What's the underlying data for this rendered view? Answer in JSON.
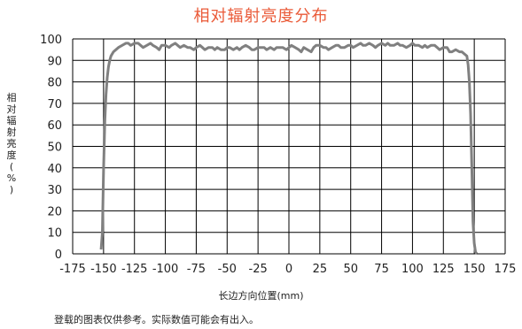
{
  "title": "相对辐射亮度分布",
  "xlabel": "长边方向位置(mm)",
  "ylabel_chars": [
    "相",
    "对",
    "辐",
    "射",
    "亮",
    "度",
    "(",
    "%",
    ")"
  ],
  "note": "登载的图表仅供参考。实际数值可能会有出入。",
  "colors": {
    "title": "#ea5a38",
    "line": "#808080",
    "grid": "#000000"
  },
  "chart_data": {
    "type": "line",
    "title": "相对辐射亮度分布",
    "xlabel": "长边方向位置(mm)",
    "ylabel": "相对辐射亮度(%)",
    "xlim": [
      -175,
      175
    ],
    "ylim": [
      0,
      100
    ],
    "xticks": [
      "-175",
      "-150",
      "-125",
      "-100",
      "-75",
      "-50",
      "-25",
      "0",
      "25",
      "50",
      "75",
      "100",
      "125",
      "150",
      "175"
    ],
    "yticks": [
      "0",
      "10",
      "20",
      "30",
      "40",
      "50",
      "60",
      "70",
      "80",
      "90",
      "100"
    ],
    "grid": true,
    "series": [
      {
        "x": [
          -152,
          -151,
          -150,
          -149,
          -148,
          -147,
          -146,
          -145,
          -144,
          -142,
          -140,
          -138,
          -135,
          -132,
          -130,
          -128,
          -125,
          -122,
          -120,
          -118,
          -115,
          -112,
          -110,
          -107,
          -105,
          -103,
          -100,
          -97,
          -95,
          -92,
          -90,
          -88,
          -85,
          -82,
          -80,
          -77,
          -75,
          -72,
          -70,
          -68,
          -65,
          -62,
          -60,
          -58,
          -55,
          -52,
          -50,
          -48,
          -45,
          -42,
          -40,
          -38,
          -35,
          -32,
          -30,
          -28,
          -25,
          -22,
          -20,
          -18,
          -15,
          -12,
          -10,
          -8,
          -5,
          -2,
          0,
          2,
          5,
          8,
          10,
          12,
          15,
          18,
          20,
          22,
          25,
          28,
          30,
          32,
          35,
          38,
          40,
          42,
          45,
          48,
          50,
          52,
          55,
          58,
          60,
          62,
          65,
          68,
          70,
          72,
          75,
          78,
          80,
          82,
          85,
          88,
          90,
          92,
          95,
          98,
          100,
          102,
          105,
          108,
          110,
          112,
          115,
          118,
          120,
          122,
          125,
          128,
          130,
          132,
          135,
          138,
          140,
          142,
          144,
          145,
          146,
          147,
          148,
          149,
          150,
          151,
          152
        ],
        "y": [
          2,
          10,
          40,
          62,
          74,
          82,
          87,
          90,
          92,
          94,
          95,
          96,
          97,
          98,
          98,
          97,
          98,
          98,
          97,
          96,
          97,
          98,
          97,
          96,
          95,
          97,
          97,
          96,
          97,
          98,
          97,
          96,
          97,
          96,
          96,
          95,
          96,
          97,
          96,
          95,
          96,
          96,
          95,
          96,
          95,
          95,
          96,
          96,
          95,
          96,
          95,
          96,
          97,
          96,
          95,
          95,
          96,
          96,
          96,
          95,
          96,
          95,
          96,
          96,
          96,
          95,
          96,
          97,
          96,
          95,
          94,
          96,
          95,
          94,
          96,
          97,
          97,
          96,
          96,
          95,
          96,
          97,
          97,
          96,
          96,
          97,
          97,
          96,
          97,
          98,
          97,
          97,
          98,
          97,
          96,
          97,
          98,
          97,
          98,
          97,
          97,
          98,
          97,
          97,
          96,
          97,
          98,
          97,
          97,
          96,
          97,
          96,
          97,
          97,
          96,
          95,
          96,
          96,
          94,
          94,
          95,
          94,
          94,
          93,
          92,
          88,
          80,
          65,
          40,
          15,
          5,
          1,
          0
        ]
      }
    ]
  }
}
